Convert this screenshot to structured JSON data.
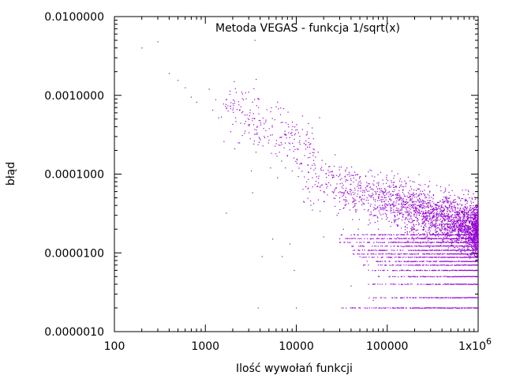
{
  "chart_data": {
    "type": "scatter",
    "title": "Metoda VEGAS - funkcja 1/sqrt(x)",
    "xlabel": "Ilość wywołań funkcji",
    "ylabel": "błąd",
    "x_scale": "log",
    "y_scale": "log",
    "xlim": [
      100,
      1000000
    ],
    "ylim": [
      1e-06,
      0.01
    ],
    "x_ticks": [
      {
        "value": 100,
        "label": "100"
      },
      {
        "value": 1000,
        "label": "1000"
      },
      {
        "value": 10000,
        "label": "10000"
      },
      {
        "value": 100000,
        "label": "100000"
      }
    ],
    "x_tick_last": {
      "value": 1000000,
      "base": "1x10",
      "exponent": "6"
    },
    "y_ticks": [
      {
        "value": 0.01,
        "label": "0.0100000"
      },
      {
        "value": 0.001,
        "label": "0.0010000"
      },
      {
        "value": 0.0001,
        "label": "0.0001000"
      },
      {
        "value": 1e-05,
        "label": "0.0000100"
      },
      {
        "value": 1e-06,
        "label": "0.0000010"
      }
    ],
    "grid": false,
    "point_color": "#9400d3",
    "series": [
      {
        "values_note": "",
        "points": [
          [
            200,
            0.004
          ],
          [
            300,
            0.0048
          ],
          [
            400,
            0.0019
          ],
          [
            500,
            0.00155
          ],
          [
            600,
            0.00125
          ],
          [
            700,
            0.00095
          ],
          [
            800,
            0.00082
          ],
          [
            1100,
            0.0012
          ],
          [
            1200,
            0.00065
          ],
          [
            1300,
            0.00088
          ],
          [
            1400,
            0.00052
          ],
          [
            1500,
            0.00053
          ],
          [
            1600,
            0.00026
          ],
          [
            1700,
            3.2e-05
          ],
          [
            1900,
            0.00068
          ],
          [
            2000,
            0.00043
          ],
          [
            2100,
            0.00021
          ],
          [
            2300,
            0.00025
          ],
          [
            2500,
            0.0011
          ],
          [
            2700,
            0.00033
          ],
          [
            3000,
            0.0011
          ],
          [
            3100,
            0.0006
          ],
          [
            3200,
            0.00011
          ],
          [
            3300,
            5.8e-05
          ],
          [
            3500,
            0.005
          ],
          [
            3600,
            0.00019
          ],
          [
            3800,
            2e-06
          ],
          [
            4000,
            0.00048
          ],
          [
            4200,
            9e-06
          ],
          [
            4500,
            0.00029
          ],
          [
            5000,
            0.00027
          ],
          [
            5200,
            0.00012
          ],
          [
            5500,
            1.5e-05
          ],
          [
            6000,
            0.00072
          ],
          [
            6200,
            9e-05
          ],
          [
            6500,
            0.00019
          ],
          [
            7000,
            9e-06
          ],
          [
            7500,
            0.00035
          ],
          [
            8000,
            0.00017
          ],
          [
            8500,
            1.3e-05
          ],
          [
            9000,
            0.00011
          ],
          [
            9500,
            6e-06
          ],
          [
            10000,
            2e-06
          ],
          [
            11000,
            0.00024
          ],
          [
            12000,
            4.5e-05
          ],
          [
            13000,
            8e-05
          ],
          [
            14000,
            0.00022
          ],
          [
            15000,
            3.5e-05
          ],
          [
            16000,
            0.00013
          ],
          [
            18000,
            0.00052
          ],
          [
            20000,
            1.6e-05
          ],
          [
            22000,
            7e-05
          ],
          [
            25000,
            9e-05
          ],
          [
            28000,
            3e-05
          ],
          [
            30000,
            5e-05
          ],
          [
            33000,
            2e-05
          ],
          [
            36000,
            0.00012
          ],
          [
            40000,
            3.8e-06
          ],
          [
            44000,
            4e-05
          ],
          [
            48000,
            2e-05
          ],
          [
            50000,
            9e-06
          ],
          [
            55000,
            7e-06
          ],
          [
            60000,
            5e-05
          ],
          [
            66000,
            1.5e-05
          ],
          [
            70000,
            2.5e-06
          ],
          [
            75000,
            3e-05
          ],
          [
            80000,
            2e-05
          ],
          [
            90000,
            6e-05
          ],
          [
            100000,
            4e-05
          ],
          [
            120000,
            3e-05
          ],
          [
            150000,
            1.2e-05
          ],
          [
            200000,
            2e-05
          ],
          [
            250000,
            3e-05
          ],
          [
            300000,
            4e-05
          ],
          [
            400000,
            2e-05
          ],
          [
            500000,
            1.5e-05
          ],
          [
            600000,
            2e-05
          ],
          [
            700000,
            3e-05
          ],
          [
            800000,
            5e-05
          ],
          [
            900000,
            3e-05
          ],
          [
            1000000,
            2e-05
          ]
        ]
      }
    ],
    "floor_bands": [
      {
        "y": 2e-06,
        "x_start": 30000,
        "x_end": 1000000
      },
      {
        "y": 2.7e-06,
        "x_start": 60000,
        "x_end": 1000000
      },
      {
        "y": 4e-06,
        "x_start": 60000,
        "x_end": 1000000
      },
      {
        "y": 5e-06,
        "x_start": 80000,
        "x_end": 1000000
      },
      {
        "y": 6e-06,
        "x_start": 60000,
        "x_end": 1000000
      },
      {
        "y": 7e-06,
        "x_start": 50000,
        "x_end": 1000000
      },
      {
        "y": 7.8e-06,
        "x_start": 60000,
        "x_end": 1000000
      },
      {
        "y": 8.8e-06,
        "x_start": 50000,
        "x_end": 1000000
      },
      {
        "y": 9.7e-06,
        "x_start": 40000,
        "x_end": 1000000
      },
      {
        "y": 1.08e-05,
        "x_start": 40000,
        "x_end": 1000000
      },
      {
        "y": 1.22e-05,
        "x_start": 40000,
        "x_end": 1000000
      },
      {
        "y": 1.36e-05,
        "x_start": 30000,
        "x_end": 1000000
      },
      {
        "y": 1.52e-05,
        "x_start": 30000,
        "x_end": 1000000
      },
      {
        "y": 1.7e-05,
        "x_start": 30000,
        "x_end": 1000000
      }
    ]
  }
}
